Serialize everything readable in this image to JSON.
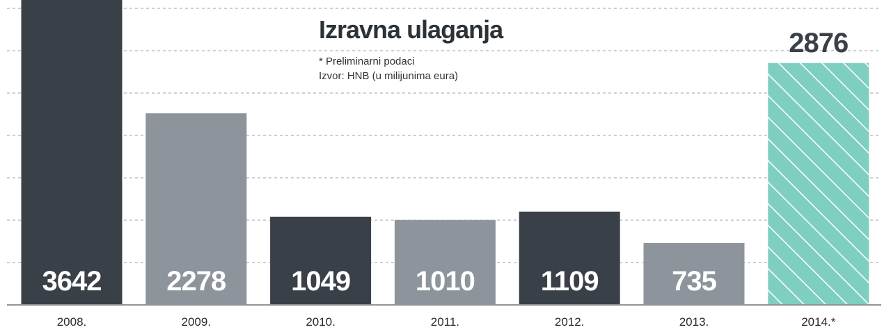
{
  "chart_data": {
    "type": "bar",
    "title": "Izravna ulaganja",
    "notes": [
      "* Preliminarni podaci",
      "Izvor: HNB (u milijunima eura)"
    ],
    "categories": [
      "2008.",
      "2009.",
      "2010.",
      "2011.",
      "2012.",
      "2013.",
      "2014.*"
    ],
    "values": [
      3642,
      2278,
      1049,
      1010,
      1109,
      735,
      2876
    ],
    "value_labels": [
      "3642",
      "2278",
      "1049",
      "1010",
      "1109",
      "735",
      "2876"
    ],
    "ylim": [
      0,
      3642
    ],
    "grid": true,
    "colors": {
      "dark": "#3a4047",
      "light": "#8d949b",
      "highlight": "#7fcfc0",
      "stripe": "#ffffff"
    },
    "bar_styles": [
      "dark",
      "light",
      "dark",
      "light",
      "dark",
      "light",
      "highlight"
    ]
  }
}
